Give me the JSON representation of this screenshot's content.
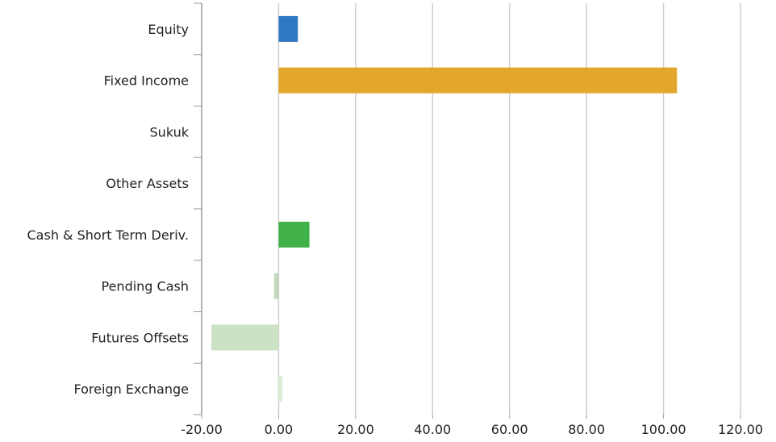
{
  "chart_data": {
    "type": "bar",
    "orientation": "horizontal",
    "categories": [
      "Equity",
      "Fixed Income",
      "Sukuk",
      "Other Assets",
      "Cash & Short Term Deriv.",
      "Pending Cash",
      "Futures Offsets",
      "Foreign Exchange"
    ],
    "values": [
      5.0,
      103.5,
      0,
      0,
      8.0,
      -1.2,
      -17.5,
      1.0
    ],
    "colors": [
      "#2e78c2",
      "#e3a82b",
      "#2e78c2",
      "#2e78c2",
      "#41b24a",
      "#c4d9bd",
      "#cce2c4",
      "#dcecd6"
    ],
    "xlim": [
      -20,
      120
    ],
    "xticks": [
      -20,
      0,
      20,
      40,
      60,
      80,
      100,
      120
    ],
    "xtick_labels": [
      "-20.00",
      "0.00",
      "20.00",
      "40.00",
      "60.00",
      "80.00",
      "100.00",
      "120.00"
    ],
    "grid": true,
    "title": "",
    "xlabel": "",
    "ylabel": ""
  }
}
